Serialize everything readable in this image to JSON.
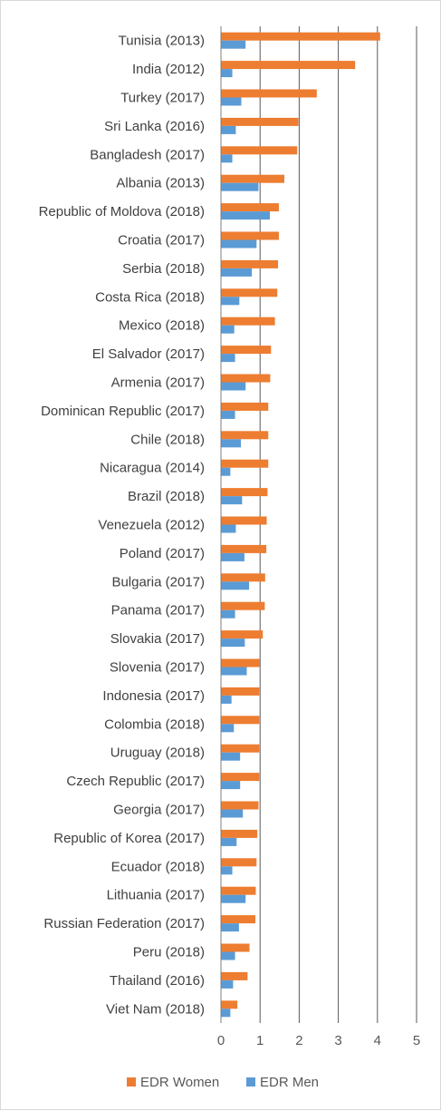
{
  "chart_data": {
    "type": "bar",
    "orientation": "horizontal",
    "categories": [
      "Tunisia (2013)",
      "India (2012)",
      "Turkey (2017)",
      "Sri Lanka (2016)",
      "Bangladesh (2017)",
      "Albania (2013)",
      "Republic of Moldova (2018)",
      "Croatia (2017)",
      "Serbia (2018)",
      "Costa Rica (2018)",
      "Mexico (2018)",
      "El Salvador (2017)",
      "Armenia (2017)",
      "Dominican Republic (2017)",
      "Chile (2018)",
      "Nicaragua (2014)",
      "Brazil (2018)",
      "Venezuela (2012)",
      "Poland (2017)",
      "Bulgaria (2017)",
      "Panama (2017)",
      "Slovakia (2017)",
      "Slovenia (2017)",
      "Indonesia (2017)",
      "Colombia (2018)",
      "Uruguay (2018)",
      "Czech Republic (2017)",
      "Georgia (2017)",
      "Republic of Korea (2017)",
      "Ecuador (2018)",
      "Lithuania (2017)",
      "Russian Federation (2017)",
      "Peru (2018)",
      "Thailand (2016)",
      "Viet Nam (2018)"
    ],
    "series": [
      {
        "name": "EDR Women",
        "color": "#ED7D31",
        "values": [
          4.07,
          3.43,
          2.45,
          1.98,
          1.95,
          1.62,
          1.48,
          1.48,
          1.46,
          1.44,
          1.38,
          1.28,
          1.26,
          1.21,
          1.21,
          1.21,
          1.19,
          1.17,
          1.16,
          1.13,
          1.12,
          1.07,
          0.99,
          0.98,
          0.98,
          0.98,
          0.98,
          0.96,
          0.93,
          0.91,
          0.89,
          0.88,
          0.73,
          0.68,
          0.42
        ]
      },
      {
        "name": "EDR Men",
        "color": "#5B9BD5",
        "values": [
          0.63,
          0.29,
          0.52,
          0.38,
          0.29,
          0.96,
          1.25,
          0.91,
          0.79,
          0.47,
          0.34,
          0.36,
          0.63,
          0.36,
          0.51,
          0.24,
          0.54,
          0.38,
          0.6,
          0.72,
          0.36,
          0.61,
          0.66,
          0.27,
          0.33,
          0.49,
          0.49,
          0.56,
          0.4,
          0.29,
          0.63,
          0.46,
          0.36,
          0.31,
          0.24
        ]
      }
    ],
    "xlim": [
      0,
      5
    ],
    "xticks": [
      "0",
      "1",
      "2",
      "3",
      "4",
      "5"
    ],
    "grid": true,
    "legend_position": "bottom"
  }
}
